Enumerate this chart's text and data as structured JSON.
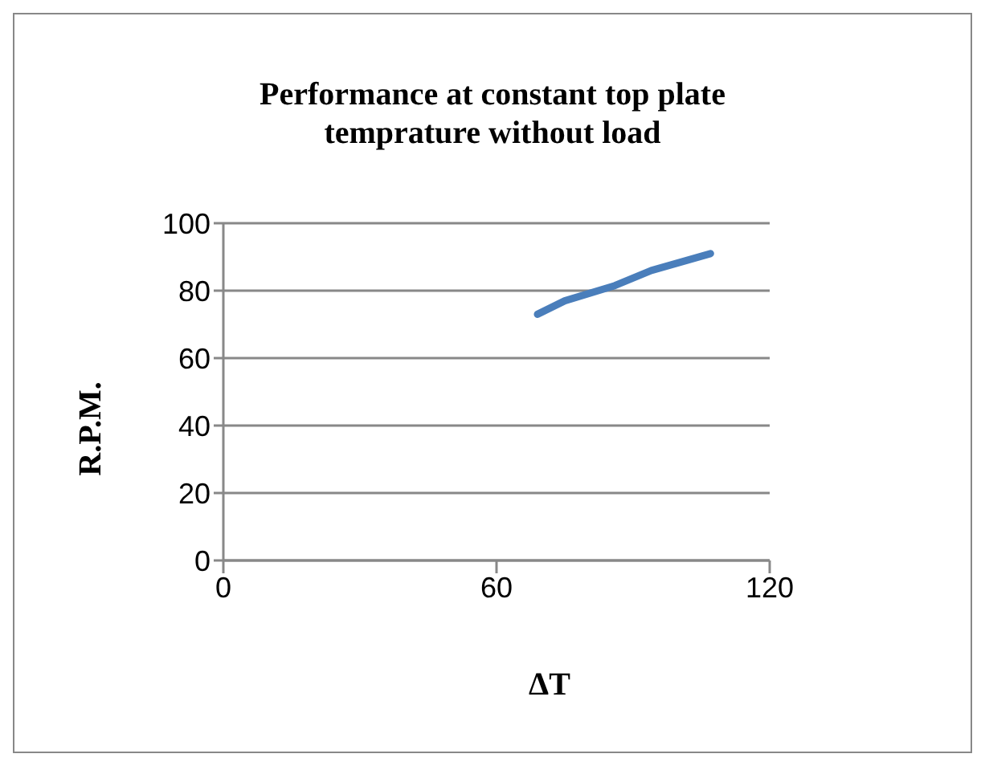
{
  "chart_data": {
    "type": "line",
    "title": "Performance at constant top plate temprature without load",
    "xlabel": "ΔT",
    "ylabel": "R.P.M.",
    "x": [
      69,
      75,
      86,
      94,
      107
    ],
    "series": [
      {
        "color": "#4a7ebb",
        "values": [
          73,
          77,
          81.5,
          86,
          91
        ]
      }
    ],
    "xlim": [
      0,
      120
    ],
    "xticks": [
      0,
      60,
      120
    ],
    "ylim": [
      0,
      100
    ],
    "yticks": [
      0,
      20,
      40,
      60,
      80,
      100
    ],
    "grid": "y",
    "legend": false,
    "marker": "none",
    "line_style": "solid"
  }
}
